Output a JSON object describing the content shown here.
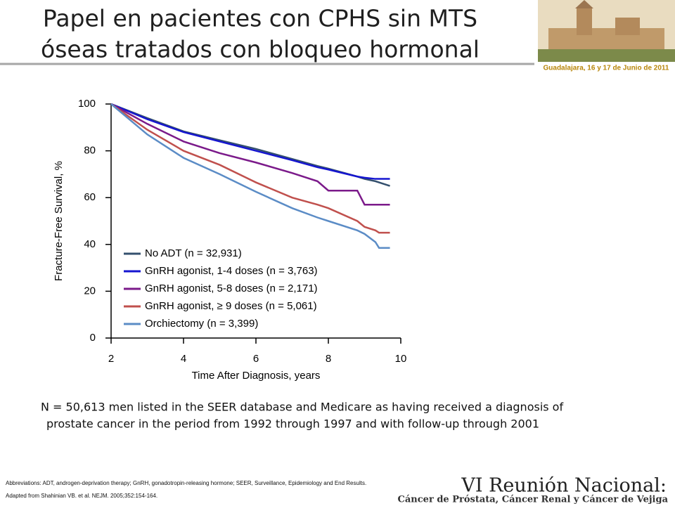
{
  "slide": {
    "title_lines": [
      "Papel en pacientes con CPHS sin MTS",
      "óseas tratados con bloqueo hormonal"
    ],
    "header_caption": "Guadalajara, 16 y 17 de Junio de 2011",
    "caption_lines": [
      "N = 50,613 men listed in the SEER database and Medicare as having received a diagnosis of",
      "prostate cancer in the period from 1992 through 1997 and with follow-up through 2001"
    ],
    "footnotes": [
      "Abbreviations: ADT, androgen-deprivation therapy; GnRH, gonadotropin-releasing hormone; SEER, Surveillance, Epidemiology and End Results.",
      "Adapted from Shahinian VB. et al. NEJM. 2005;352:154-164."
    ],
    "banner_title": "VI Reunión Nacional:",
    "banner_subtitle": "Cáncer de Próstata, Cáncer Renal y Cáncer de Vejiga"
  },
  "chart_data": {
    "type": "line",
    "x_label": "Time After Diagnosis, years",
    "y_label": "Fracture-Free Survival, %",
    "x": [
      2,
      3,
      4,
      5,
      6,
      7,
      7.7,
      8,
      8.8,
      9,
      9.3,
      9.4,
      9.7
    ],
    "series": [
      {
        "name": "No ADT (n = 32,931)",
        "color": "#34506e",
        "values": [
          100,
          94,
          88.3,
          84.5,
          80.8,
          76.5,
          73.5,
          72.4,
          69,
          68,
          67,
          66.5,
          65
        ]
      },
      {
        "name": "GnRH agonist, 1-4 doses (n = 3,763)",
        "color": "#1515d0",
        "values": [
          100,
          93.5,
          88,
          84,
          80,
          76,
          73,
          72,
          69,
          68.5,
          68,
          68,
          68
        ]
      },
      {
        "name": "GnRH agonist, 5-8 doses (n = 2,171)",
        "color": "#7b1a8a",
        "values": [
          100,
          91.5,
          84,
          79,
          75,
          70.5,
          67,
          63,
          63,
          57,
          57,
          57,
          57
        ]
      },
      {
        "name": "GnRH agonist, ≥ 9 doses (n = 5,061)",
        "color": "#c0504d",
        "values": [
          100,
          89,
          80,
          74,
          66.5,
          60,
          57,
          55.5,
          50,
          47.5,
          46,
          45,
          45
        ]
      },
      {
        "name": "Orchiectomy (n = 3,399)",
        "color": "#5b8cc6",
        "values": [
          100,
          87,
          77,
          70,
          62.5,
          55.5,
          51.5,
          50,
          46,
          44.5,
          41,
          38.5,
          38.5
        ]
      }
    ],
    "xlim": [
      2,
      10
    ],
    "xticks": [
      2,
      4,
      6,
      8,
      10
    ],
    "ylim": [
      0,
      100
    ],
    "yticks": [
      0,
      20,
      40,
      60,
      80,
      100
    ],
    "legend": "lower left"
  }
}
